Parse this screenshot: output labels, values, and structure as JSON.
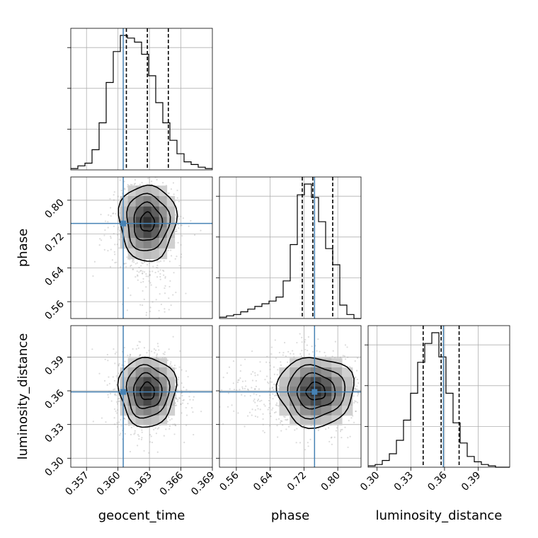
{
  "chart_data": {
    "type": "corner",
    "parameters": [
      "geocent_time",
      "phase",
      "luminosity_distance"
    ],
    "truths": {
      "geocent_time": 0.3605,
      "phase": 0.745,
      "luminosity_distance": 0.359
    },
    "ranges": {
      "geocent_time": [
        0.3555,
        0.369
      ],
      "phase": [
        0.52,
        0.855
      ],
      "luminosity_distance": [
        0.292,
        0.418
      ]
    },
    "ticks": {
      "geocent_time": [
        "0.357",
        "0.360",
        "0.363",
        "0.366",
        "0.369"
      ],
      "phase": [
        "0.56",
        "0.64",
        "0.72",
        "0.80"
      ],
      "luminosity_distance": [
        "0.30",
        "0.33",
        "0.36",
        "0.39"
      ]
    },
    "quantiles": {
      "geocent_time": [
        0.3608,
        0.3628,
        0.3648
      ],
      "phase": [
        0.716,
        0.741,
        0.788
      ],
      "luminosity_distance": [
        0.341,
        0.357,
        0.373
      ]
    },
    "histograms": {
      "geocent_time": {
        "edges_range": [
          0.3555,
          0.369
        ],
        "counts": [
          1,
          3,
          5,
          15,
          35,
          65,
          88,
          100,
          98,
          95,
          86,
          70,
          50,
          35,
          22,
          12,
          6,
          4,
          2,
          1
        ]
      },
      "phase": {
        "edges_range": [
          0.52,
          0.855
        ],
        "counts": [
          1,
          2,
          3,
          5,
          7,
          9,
          11,
          13,
          16,
          28,
          55,
          92,
          100,
          90,
          72,
          52,
          40,
          10,
          3,
          0
        ]
      },
      "luminosity_distance": {
        "edges_range": [
          0.292,
          0.418
        ],
        "counts": [
          1,
          2,
          5,
          10,
          20,
          35,
          55,
          78,
          92,
          100,
          82,
          55,
          33,
          18,
          8,
          4,
          2,
          1,
          0,
          0
        ]
      }
    },
    "grid": true
  }
}
